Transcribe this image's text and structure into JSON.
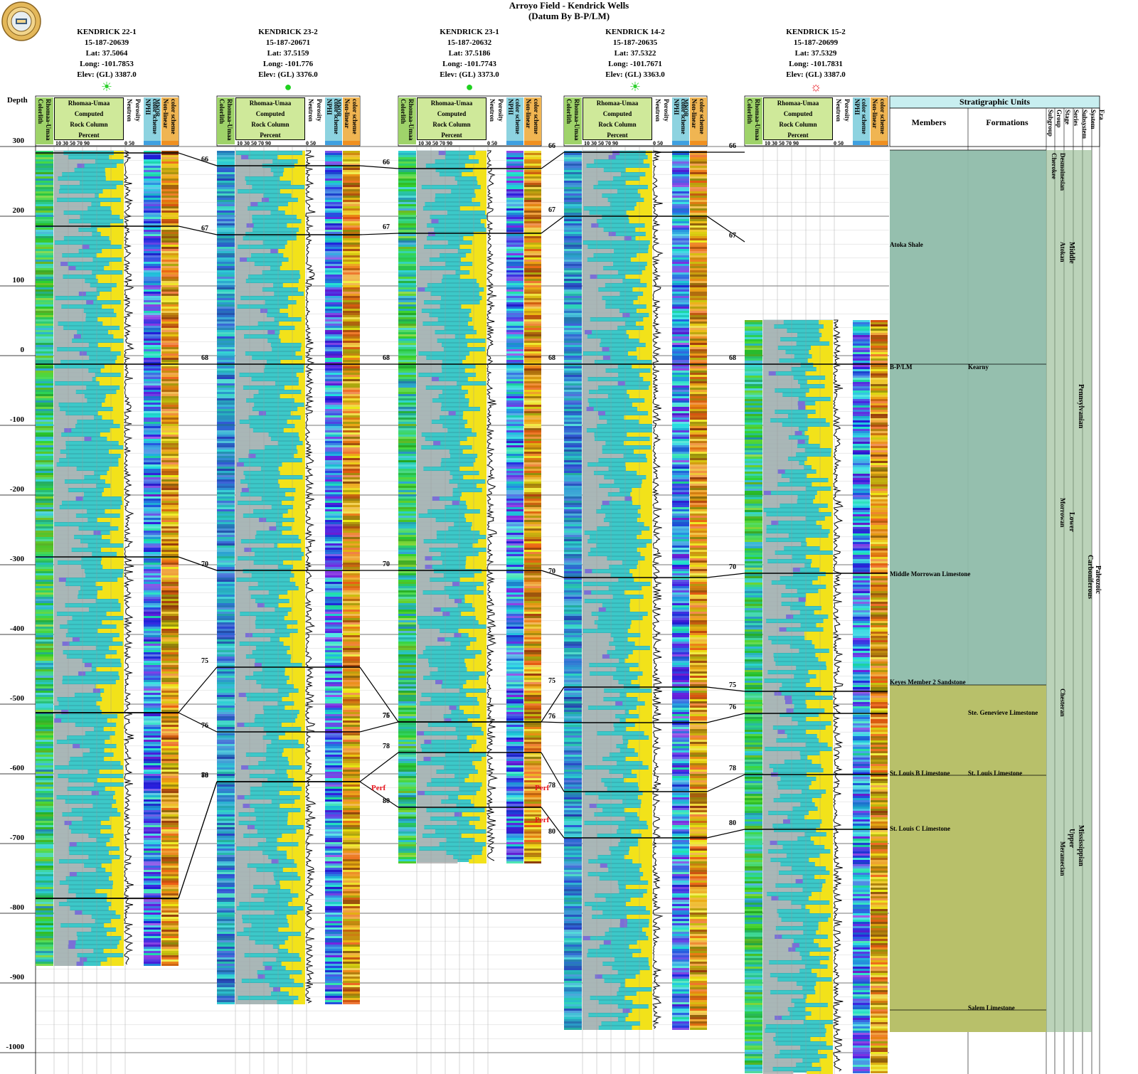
{
  "header": {
    "title": "Arroyo Field - Kendrick Wells",
    "subtitle": "(Datum By B-P/LM)"
  },
  "depth_axis": {
    "label": "Depth",
    "ticks": [
      "300",
      "200",
      "100",
      "0",
      "-100",
      "-200",
      "-300",
      "-400",
      "-500",
      "-600",
      "-700",
      "-800",
      "-900",
      "-1000"
    ]
  },
  "track_headers": {
    "colorlith": "Colorlith",
    "colorlith_sub": "Rhomaa-Umaa",
    "rock_col_lines": [
      "Rhomaa-Umaa",
      "Computed",
      "Rock Column",
      "Percent"
    ],
    "rock_scale": "10  30  50  70  90",
    "neutron": "Neutron",
    "neutron_scale": "0    50",
    "porosity": "Porosity",
    "nphi": "NPHI",
    "nphi_sub": "color scheme",
    "mnor": "MNOR",
    "mnor_sub": "color scheme",
    "nonlinear": "Non-linear",
    "nonlinear_sub": "color scheme"
  },
  "wells": [
    {
      "name": "KENDRICK 22-1",
      "api": "15-187-20639",
      "lat": "Lat: 37.5064",
      "long": "Long: -101.7853",
      "elev": "Elev: (GL) 3387.0",
      "symbol": "☀",
      "symbol_color": "#2ed12e"
    },
    {
      "name": "KENDRICK 23-2",
      "api": "15-187-20671",
      "lat": "Lat: 37.5159",
      "long": "Long: -101.776",
      "elev": "Elev: (GL) 3376.0",
      "symbol": "●",
      "symbol_color": "#1fd11f"
    },
    {
      "name": "KENDRICK 23-1",
      "api": "15-187-20632",
      "lat": "Lat: 37.5186",
      "long": "Long: -101.7743",
      "elev": "Elev: (GL) 3373.0",
      "symbol": "●",
      "symbol_color": "#1fd11f"
    },
    {
      "name": "KENDRICK 14-2",
      "api": "15-187-20635",
      "lat": "Lat: 37.5322",
      "long": "Long: -101.7671",
      "elev": "Elev: (GL) 3363.0",
      "symbol": "☀",
      "symbol_color": "#2ed12e"
    },
    {
      "name": "KENDRICK 15-2",
      "api": "15-187-20699",
      "lat": "Lat: 37.5329",
      "long": "Long: -101.7831",
      "elev": "Elev: (GL) 3387.0",
      "symbol": "☼",
      "symbol_color": "#e8141c"
    }
  ],
  "correlation_markers": [
    "66",
    "67",
    "68",
    "70",
    "75",
    "76",
    "78",
    "80"
  ],
  "perf_label": "Perf",
  "strat_units": {
    "title": "Stratigraphic Units",
    "members_header": "Members",
    "formations_header": "Formations",
    "rank_headers": [
      "Subgroup",
      "Group",
      "Stage",
      "Series",
      "Subsystem",
      "System",
      "Era"
    ],
    "members": [
      "Atoka Shale",
      "B-P/LM",
      "Middle Morrowan Limestone",
      "Keyes Member 2 Sandstone",
      "St. Louis B Limestone",
      "St. Louis C Limestone"
    ],
    "formations": [
      "Kearny",
      "Ste. Genevieve Limestone",
      "St. Louis Limestone",
      "Salem Limestone"
    ],
    "group": "Cherokee",
    "stages": [
      "Desmoinesian",
      "Atokan",
      "Morrowan",
      "Chesteran",
      "Meramecian"
    ],
    "series": [
      "Middle",
      "Lower",
      "Upper"
    ],
    "subsystems": [
      "Pennsylvanian",
      "Mississippian"
    ],
    "system": "Carboniferous",
    "era": "Paleozoic"
  },
  "colors": {
    "limestone": "#3cc8c8",
    "sandstone": "#f2e21a",
    "shale": "#b5b5b5",
    "dolomite": "#7b6fd6",
    "anhydrite": "#e0338c",
    "rock_header": "#cfe99a",
    "strat_penn": "#8fbcaa",
    "strat_miss": "#b8c06a",
    "strat_carb": "#8db58a"
  }
}
